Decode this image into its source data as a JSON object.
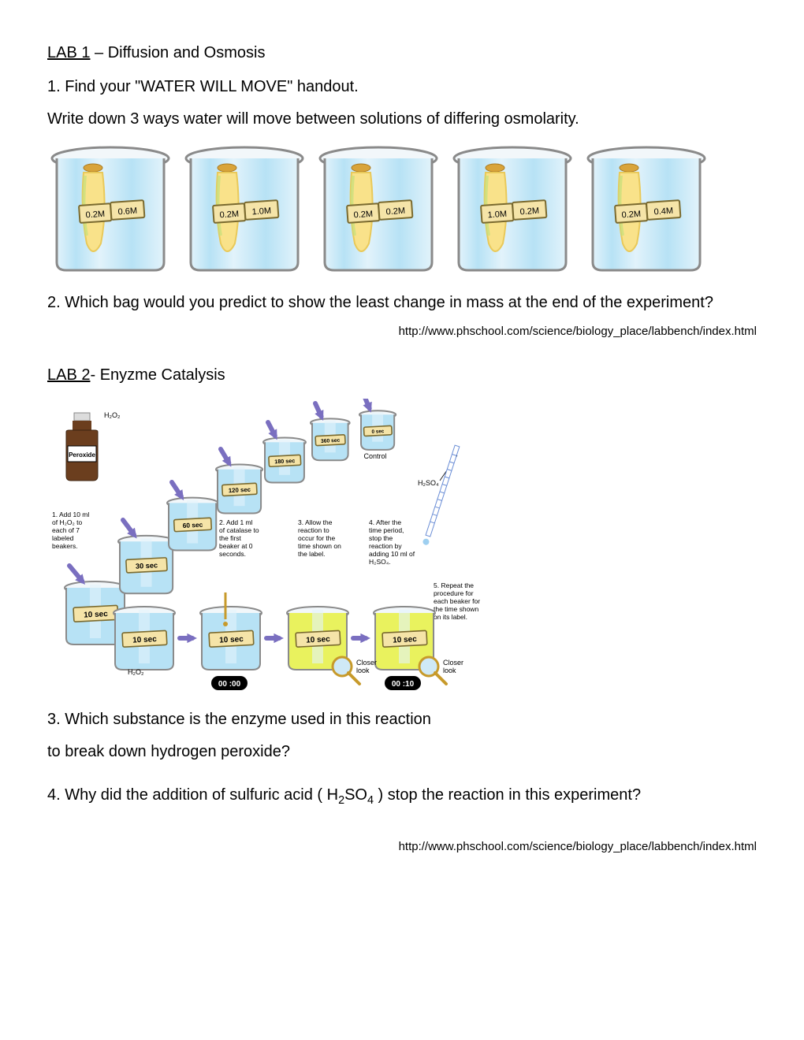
{
  "lab1": {
    "heading_label": "LAB 1",
    "heading_rest": " – Diffusion and Osmosis",
    "q1_line1": "1. Find your \"WATER WILL MOVE\" handout.",
    "q1_line2": "Write down 3 ways water will move between solutions of differing osmolarity.",
    "q2": "2. Which bag would you predict to show the least change in mass at the end of the experiment?",
    "url": "http://www.phschool.com/science/biology_place/labbench/index.html",
    "beakers": [
      {
        "bag": "0.2M",
        "sol": "0.6M"
      },
      {
        "bag": "0.2M",
        "sol": "1.0M"
      },
      {
        "bag": "0.2M",
        "sol": "0.2M"
      },
      {
        "bag": "1.0M",
        "sol": "0.2M"
      },
      {
        "bag": "0.2M",
        "sol": "0.4M"
      }
    ],
    "beaker_style": {
      "width": 160,
      "height": 168,
      "water_fill": "#b7e2f5",
      "water_light": "#e2f3fb",
      "glass_stroke": "#8a8a8a",
      "bag_fill": "#f9e28a",
      "bag_shade": "#e9c95a",
      "bag_highlight": "#c4e07a",
      "label_fill": "#f5e4a8",
      "label_stroke": "#7a6a2f",
      "label_font": "12px Verdana, Arial"
    }
  },
  "lab2": {
    "heading_label": "LAB 2",
    "heading_rest": "- Enyzme Catalysis",
    "q3_line1": "3. Which substance is the enzyme used in this reaction",
    "q3_line2": "to break down hydrogen peroxide?",
    "q4_prefix": "4. Why did the addition of sulfuric acid ( H",
    "q4_sub1": "2",
    "q4_mid": "SO",
    "q4_sub2": "4",
    "q4_suffix": " ) stop the reaction in this experiment?",
    "url": "http://www.phschool.com/science/biology_place/labbench/index.html",
    "diagram": {
      "bottle_label": "Peroxide",
      "bottle_caption": "H₂O₂",
      "control_label": "Control",
      "h2so4_label": "H₂SO₄",
      "closer_look": "Closer look",
      "timers": [
        "00 :00",
        "00 :10"
      ],
      "time_beakers": [
        "10 sec",
        "30 sec",
        "60 sec",
        "120 sec",
        "180 sec",
        "360 sec",
        "0 sec"
      ],
      "bottom_beakers": [
        "10 sec",
        "10 sec",
        "10 sec",
        "10 sec"
      ],
      "bottom_h2o2": "H₂O₂",
      "steps": [
        "1. Add 10 ml of H₂O₂ to each of 7 labeled beakers.",
        "2. Add 1 ml of catalase to the first beaker at 0 seconds.",
        "3. Allow the reaction to occur for the time shown on the label.",
        "4. After the time period, stop the reaction by adding 10 ml of H₂SO₄.",
        "5. Repeat the procedure for each beaker for the time shown on its label."
      ],
      "style": {
        "water_fill": "#b7e2f5",
        "water_light": "#e2f3fb",
        "yellow_liquid": "#e9f25e",
        "glass_stroke": "#8a8a8a",
        "label_fill": "#f5e4a8",
        "label_stroke": "#7a6a2f",
        "arrow_fill": "#7a6fc0",
        "bottle_body": "#6b3e1e",
        "bottle_cap": "#dcdcdc",
        "timer_fill": "#000",
        "timer_text": "#fff",
        "magnifier_rim": "#c79a2b",
        "pipette_stroke": "#6b8ed6",
        "step_font": "8.5px Verdana, Arial",
        "small_label_font": "9px Verdana, Arial"
      }
    }
  }
}
